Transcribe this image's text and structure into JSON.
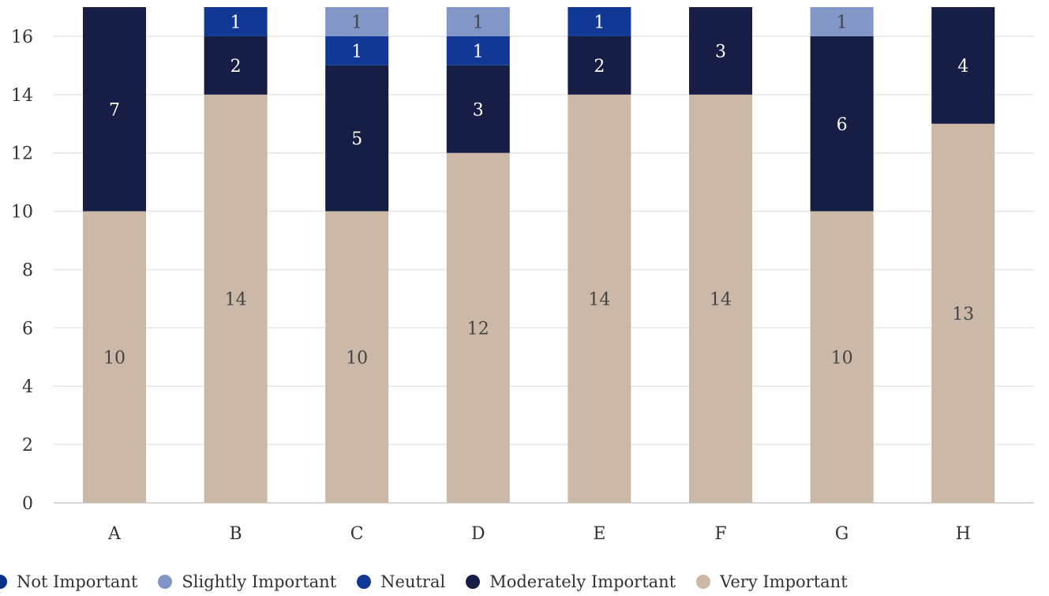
{
  "chart_data": {
    "type": "bar",
    "stacked": true,
    "categories": [
      "A",
      "B",
      "C",
      "D",
      "E",
      "F",
      "G",
      "H"
    ],
    "series": [
      {
        "name": "Very Important",
        "color": "#ccb8a6",
        "label_color": "#444444",
        "values": [
          10,
          14,
          10,
          12,
          14,
          14,
          10,
          13
        ]
      },
      {
        "name": "Moderately Important",
        "color": "#161e45",
        "label_color": "#ffffff",
        "values": [
          7,
          2,
          5,
          3,
          2,
          3,
          6,
          4
        ]
      },
      {
        "name": "Neutral",
        "color": "#123896",
        "label_color": "#ffffff",
        "values": [
          0,
          1,
          1,
          1,
          1,
          0,
          0,
          0
        ]
      },
      {
        "name": "Slightly Important",
        "color": "#8396c8",
        "label_color": "#444444",
        "values": [
          0,
          0,
          1,
          1,
          0,
          0,
          1,
          0
        ]
      },
      {
        "name": "Not Important",
        "color": "#0d2f8a",
        "label_color": "#ffffff",
        "values": [
          0,
          0,
          0,
          0,
          0,
          0,
          0,
          0
        ]
      }
    ],
    "yticks": [
      0,
      2,
      4,
      6,
      8,
      10,
      12,
      14,
      16
    ],
    "ylim": [
      0,
      17
    ],
    "grid": true,
    "legend_position": "bottom",
    "legend_order": [
      "Not Important",
      "Slightly Important",
      "Neutral",
      "Moderately Important",
      "Very Important"
    ]
  }
}
